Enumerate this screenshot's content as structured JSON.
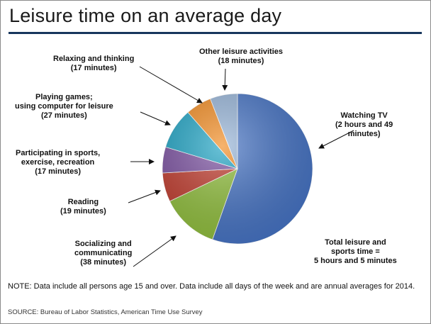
{
  "title": "Leisure time on an average day",
  "note": "NOTE: Data include all persons age 15 and over. Data include all days of the week and are annual averages for 2014.",
  "source": "SOURCE: Bureau of Labor Statistics, American Time Use Survey",
  "total_label": [
    "Total leisure and",
    "sports time =",
    "5 hours and 5 minutes"
  ],
  "chart_data": {
    "type": "pie",
    "title": "Leisure time on an average day",
    "unit": "minutes",
    "slices": [
      {
        "key": "tv",
        "label": [
          "Watching TV",
          "(2 hours and 49",
          "minutes)"
        ],
        "value": 169,
        "color": "#4472c4"
      },
      {
        "key": "social",
        "label": [
          "Socializing and",
          "communicating",
          "(38 minutes)"
        ],
        "value": 38,
        "color": "#8fbe3a"
      },
      {
        "key": "reading",
        "label": [
          "Reading",
          "(19 minutes)"
        ],
        "value": 19,
        "color": "#c0392b"
      },
      {
        "key": "sports",
        "label": [
          "Participating in sports,",
          "exercise, recreation",
          "(17 minutes)"
        ],
        "value": 17,
        "color": "#7a4fa0"
      },
      {
        "key": "games",
        "label": [
          "Playing games;",
          "using computer for leisure",
          "(27 minutes)"
        ],
        "value": 27,
        "color": "#1ba2c3"
      },
      {
        "key": "relax",
        "label": [
          "Relaxing and thinking",
          "(17 minutes)"
        ],
        "value": 17,
        "color": "#f28a1e"
      },
      {
        "key": "other",
        "label": [
          "Other leisure activities",
          "(18 minutes)"
        ],
        "value": 18,
        "color": "#95b3d7"
      }
    ]
  }
}
